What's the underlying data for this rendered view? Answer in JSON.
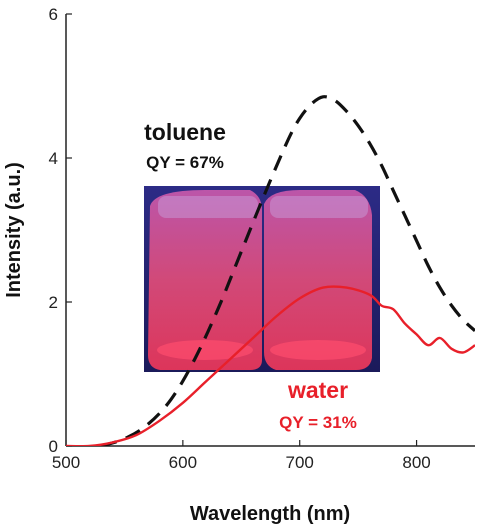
{
  "chart_data": {
    "type": "line",
    "xlabel": "Wavelength (nm)",
    "ylabel": "Intensity (a.u.)",
    "xlim": [
      500,
      850
    ],
    "ylim": [
      0,
      6
    ],
    "x_ticks": [
      500,
      600,
      700,
      800
    ],
    "y_ticks": [
      0,
      2,
      4,
      6
    ],
    "grid": false,
    "colors": {
      "toluene": "#111111",
      "water": "#e8202a",
      "inset_bg": "#2b2a8c"
    },
    "series": [
      {
        "name": "toluene",
        "style": "dashed",
        "x": [
          530,
          550,
          570,
          590,
          610,
          630,
          650,
          670,
          690,
          700,
          710,
          720,
          730,
          740,
          750,
          760,
          770,
          780,
          790,
          800,
          810,
          820,
          830,
          840,
          850
        ],
        "y": [
          0.0,
          0.1,
          0.3,
          0.65,
          1.2,
          1.9,
          2.7,
          3.5,
          4.25,
          4.55,
          4.75,
          4.85,
          4.8,
          4.65,
          4.45,
          4.2,
          3.9,
          3.55,
          3.2,
          2.85,
          2.5,
          2.2,
          1.95,
          1.75,
          1.6
        ]
      },
      {
        "name": "water",
        "style": "solid",
        "x": [
          500,
          520,
          540,
          560,
          580,
          600,
          620,
          640,
          660,
          680,
          700,
          720,
          740,
          760,
          770,
          780,
          790,
          800,
          810,
          820,
          830,
          840,
          850
        ],
        "y": [
          0.0,
          0.0,
          0.05,
          0.15,
          0.35,
          0.6,
          0.9,
          1.2,
          1.5,
          1.8,
          2.05,
          2.2,
          2.2,
          2.1,
          1.95,
          1.9,
          1.7,
          1.55,
          1.4,
          1.5,
          1.35,
          1.3,
          1.4
        ]
      }
    ],
    "annotations": {
      "toluene_label": "toluene",
      "toluene_qy": "QY = 67%",
      "water_label": "water",
      "water_qy": "QY = 31%"
    }
  }
}
